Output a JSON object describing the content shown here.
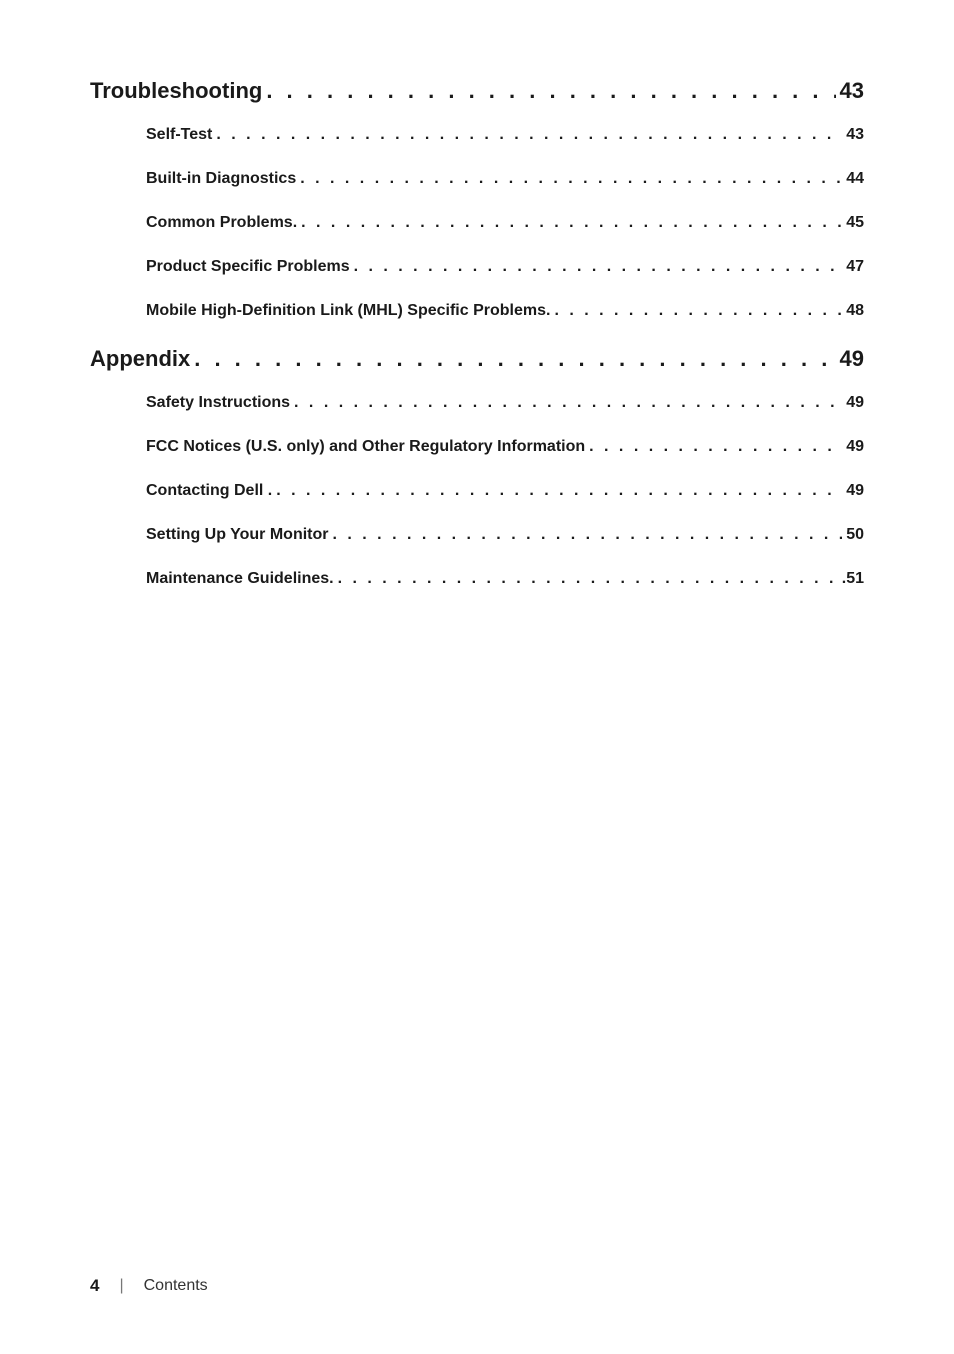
{
  "toc": {
    "sections": [
      {
        "title": "Troubleshooting",
        "page": "43",
        "leader": ". . . . . . . . . . . . . . . . . . . . . . . . . . . . . . . . . . . . . . . . . . . . . . . . . . . . . . . . . . . . . . . . . . . . . . . . . . . . . . . . . . . . . . . . . . . . . . . . . . . . . . . . . . . . . . .",
        "items": [
          {
            "title": "Self-Test",
            "page": "43",
            "leader": " .  .  .  .  .  .  .  .  .  .  .  .  .  .  .  .  .  .  .  .  .  .  .  .  .  .  .  .  .  .  .  .  .  .  .  .  .  .  .  .  .  .  .  .  .  .  .  .  .  .  .  .  .  .  .  .  .  .  .  .  .  .  .  .  .  .  .  .  .  .  .  .  .  .  .  .  .  .  .  .  .  .  .  .  .  .  .  .  . "
          },
          {
            "title": "Built-in Diagnostics",
            "page": "44",
            "leader": " .  .  .  .  .  .  .  .  .  .  .  .  .  .  .  .  .  .  .  .  .  .  .  .  .  .  .  .  .  .  .  .  .  .  .  .  .  .  .  .  .  .  .  .  .  .  .  .  .  .  .  .  .  .  .  .  .  .  .  .  .  .  .  .  .  .  .  .  .  .  .  .  .  .  .  .  .  .  .  .  .  .  .  .  .  .  .  .  . "
          },
          {
            "title": "Common Problems.",
            "page": "45",
            "leader": " .  .  .  .  .  .  .  .  .  .  .  .  .  .  .  .  .  .  .  .  .  .  .  .  .  .  .  .  .  .  .  .  .  .  .  .  .  .  .  .  .  .  .  .  .  .  .  .  .  .  .  .  .  .  .  .  .  .  .  .  .  .  .  .  .  .  .  .  .  .  .  .  .  .  .  .  .  .  .  .  .  .  .  .  .  .  .  .  . "
          },
          {
            "title": "Product Specific Problems",
            "page": "47",
            "leader": " .  .  .  .  .  .  .  .  .  .  .  .  .  .  .  .  .  .  .  .  .  .  .  .  .  .  .  .  .  .  .  .  .  .  .  .  .  .  .  .  .  .  .  .  .  .  .  .  .  .  .  .  .  .  .  .  .  .  .  .  .  .  .  .  .  .  .  .  .  .  .  .  .  .  .  .  .  .  .  .  .  .  .  .  .  .  .  .  . "
          },
          {
            "title": "Mobile High-Definition Link (MHL) Specific Problems.",
            "page": "48",
            "leader": " .  .  .  .  .  .  .  .  .  .  .  .  .  .  .  .  .  .  .  .  .  .  .  .  .  .  .  .  .  .  .  .  .  .  .  .  .  .  .  .  .  .  .  .  .  .  .  .  .  .  .  .  .  .  .  .  .  .  .  .  .  .  .  .  .  .  .  .  .  .  .  .  .  .  .  .  .  .  .  .  .  .  .  .  .  .  .  .  . "
          }
        ]
      },
      {
        "title": "Appendix",
        "page": "49",
        "leader": ". . . . . . . . . . . . . . . . . . . . . . . . . . . . . . . . . . . . . . . . . . . . . . . . . . . . . . . . . . . . . . . . . . . . . . . . . . . . . . . . . . . . . . . . . . . . . . . . . . . . . . . . . . . . . . .",
        "items": [
          {
            "title": "Safety Instructions",
            "page": "49",
            "leader": " .  .  .  .  .  .  .  .  .  .  .  .  .  .  .  .  .  .  .  .  .  .  .  .  .  .  .  .  .  .  .  .  .  .  .  .  .  .  .  .  .  .  .  .  .  .  .  .  .  .  .  .  .  .  .  .  .  .  .  .  .  .  .  .  .  .  .  .  .  .  .  .  .  .  .  .  .  .  .  .  .  .  .  .  .  .  .  .  . "
          },
          {
            "title": "FCC Notices (U.S. only) and Other Regulatory Information ",
            "page": "49",
            "leader": " .  .  .  .  .  .  .  .  .  .  .  .  .  .  .  .  .  .  .  .  .  .  .  .  .  .  .  .  .  .  .  .  .  .  .  .  .  .  .  .  .  .  .  .  .  .  .  .  .  .  .  .  .  .  .  .  .  .  .  .  .  .  .  .  .  .  .  .  .  .  .  .  .  .  .  .  .  .  .  .  .  .  .  .  .  .  .  .  . "
          },
          {
            "title": "Contacting Dell .",
            "page": "49",
            "leader": " .  .  .  .  .  .  .  .  .  .  .  .  .  .  .  .  .  .  .  .  .  .  .  .  .  .  .  .  .  .  .  .  .  .  .  .  .  .  .  .  .  .  .  .  .  .  .  .  .  .  .  .  .  .  .  .  .  .  .  .  .  .  .  .  .  .  .  .  .  .  .  .  .  .  .  .  .  .  .  .  .  .  .  .  .  .  .  .  . "
          },
          {
            "title": "Setting Up Your Monitor ",
            "page": "50",
            "leader": " .  .  .  .  .  .  .  .  .  .  .  .  .  .  .  .  .  .  .  .  .  .  .  .  .  .  .  .  .  .  .  .  .  .  .  .  .  .  .  .  .  .  .  .  .  .  .  .  .  .  .  .  .  .  .  .  .  .  .  .  .  .  .  .  .  .  .  .  .  .  .  .  .  .  .  .  .  .  .  .  .  .  .  .  .  .  .  .  . "
          },
          {
            "title": "Maintenance Guidelines.",
            "page": ".51",
            "leader": " .  .  .  .  .  .  .  .  .  .  .  .  .  .  .  .  .  .  .  .  .  .  .  .  .  .  .  .  .  .  .  .  .  .  .  .  .  .  .  .  .  .  .  .  .  .  .  .  .  .  .  .  .  .  .  .  .  .  .  .  .  .  .  .  .  .  .  .  .  .  .  .  .  .  .  .  .  .  .  .  .  .  .  .  .  .  .  .  . "
          }
        ]
      }
    ]
  },
  "footer": {
    "page_number": "4",
    "divider": "|",
    "section_label": "Contents"
  }
}
